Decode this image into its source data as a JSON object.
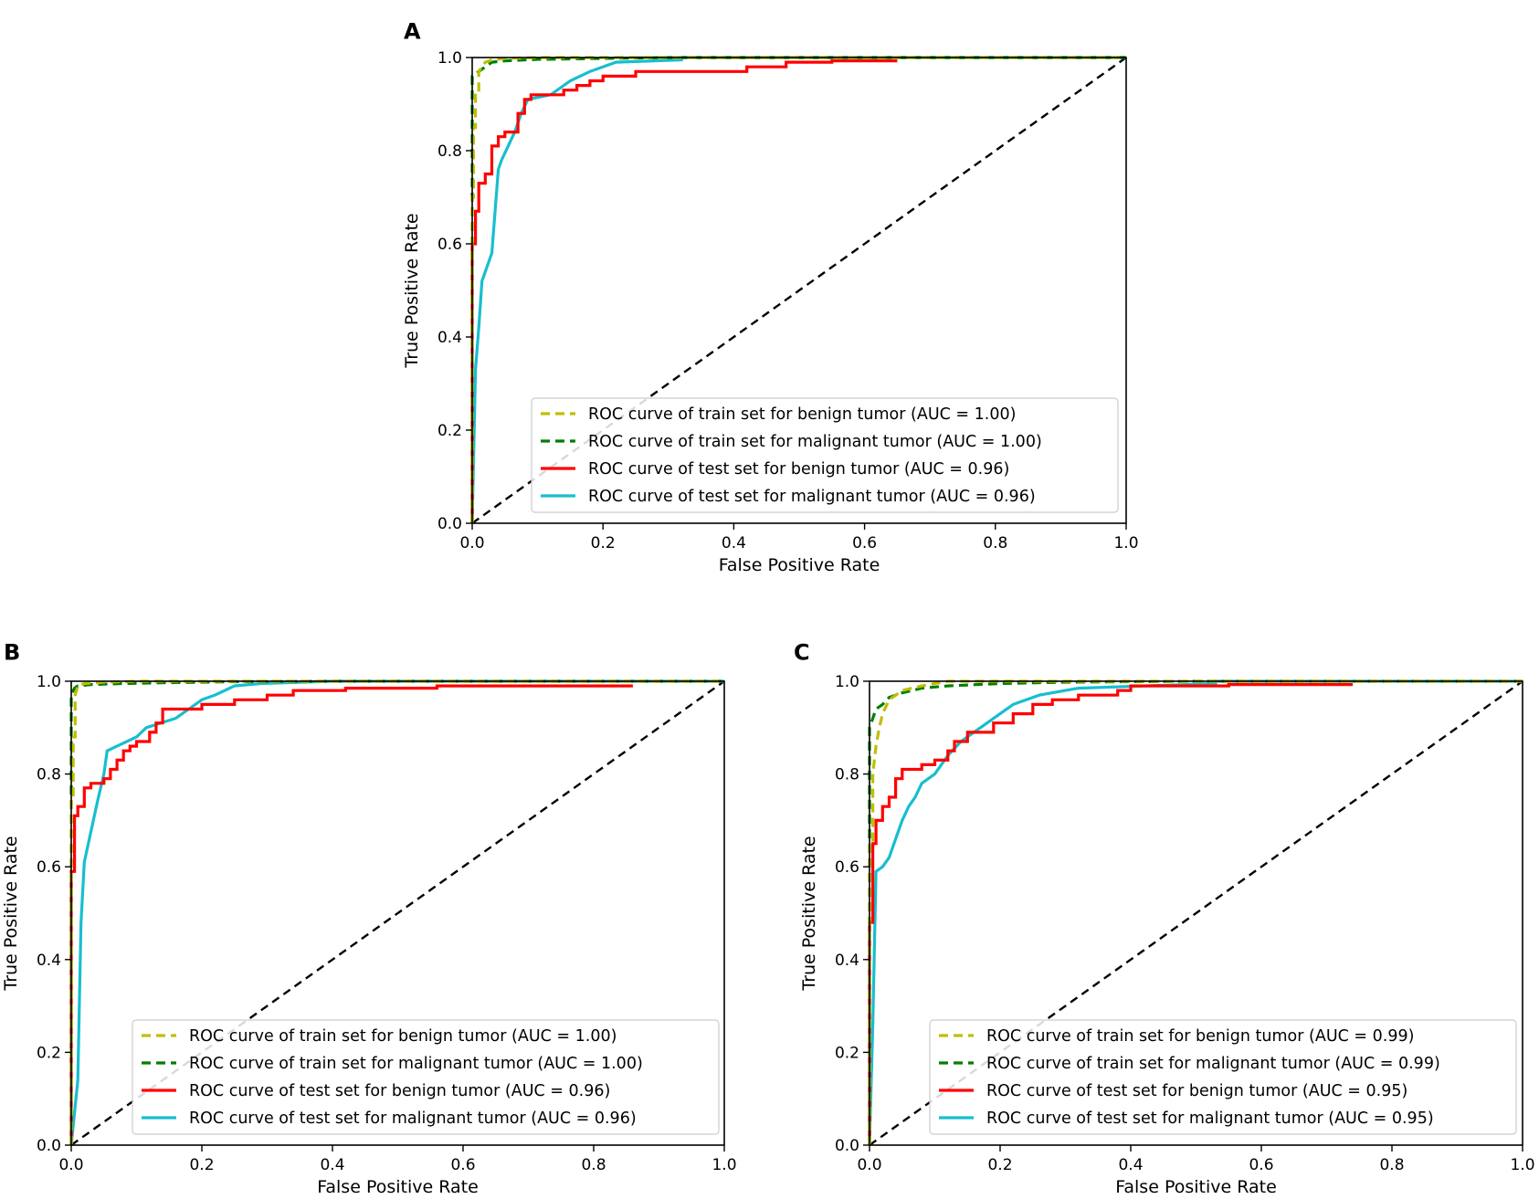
{
  "figure": {
    "panels": [
      "A",
      "B",
      "C"
    ]
  },
  "chart_data": [
    {
      "panel": "A",
      "type": "line",
      "xlabel": "False Positive Rate",
      "ylabel": "True Positive Rate",
      "xlim": [
        0.0,
        1.0
      ],
      "ylim": [
        0.0,
        1.0
      ],
      "xticks": [
        "0.0",
        "0.2",
        "0.4",
        "0.6",
        "0.8",
        "1.0"
      ],
      "yticks": [
        "0.0",
        "0.2",
        "0.4",
        "0.6",
        "0.8",
        "1.0"
      ],
      "legend_position": "lower-right",
      "reference_line": {
        "x": [
          0,
          1
        ],
        "y": [
          0,
          1
        ],
        "style": "dashed",
        "color": "#000000"
      },
      "series": [
        {
          "name": "ROC curve of train set for benign tumor (AUC = 1.00)",
          "color": "#bfbf00",
          "style": "dashed",
          "x": [
            0,
            0,
            0.002,
            0.002,
            0.005,
            0.005,
            0.01,
            0.01,
            0.02,
            0.03,
            0.05,
            0.1,
            0.2,
            1
          ],
          "y": [
            0,
            0.7,
            0.7,
            0.85,
            0.85,
            0.93,
            0.93,
            0.97,
            0.99,
            0.995,
            0.998,
            1,
            1,
            1
          ]
        },
        {
          "name": "ROC curve of train set for malignant tumor (AUC = 1.00)",
          "color": "#007f00",
          "style": "dashed",
          "x": [
            0,
            0,
            0.005,
            0.01,
            0.02,
            0.03,
            0.05,
            0.1,
            0.2,
            0.3,
            1
          ],
          "y": [
            0,
            0.96,
            0.965,
            0.97,
            0.98,
            0.99,
            0.993,
            0.996,
            0.998,
            1,
            1
          ]
        },
        {
          "name": "ROC curve of test set for benign tumor (AUC = 0.96)",
          "color": "#ff0000",
          "style": "solid",
          "x": [
            0,
            0,
            0.005,
            0.005,
            0.01,
            0.01,
            0.02,
            0.02,
            0.03,
            0.03,
            0.04,
            0.04,
            0.05,
            0.05,
            0.07,
            0.07,
            0.08,
            0.08,
            0.09,
            0.09,
            0.14,
            0.14,
            0.16,
            0.16,
            0.18,
            0.18,
            0.2,
            0.2,
            0.25,
            0.25,
            0.42,
            0.42,
            0.48,
            0.48,
            0.55,
            0.55,
            0.65
          ],
          "y": [
            0,
            0.6,
            0.6,
            0.67,
            0.67,
            0.73,
            0.73,
            0.75,
            0.75,
            0.81,
            0.81,
            0.83,
            0.83,
            0.84,
            0.84,
            0.88,
            0.88,
            0.91,
            0.91,
            0.92,
            0.92,
            0.93,
            0.93,
            0.94,
            0.94,
            0.95,
            0.95,
            0.96,
            0.96,
            0.97,
            0.97,
            0.98,
            0.98,
            0.99,
            0.99,
            0.993,
            0.993
          ]
        },
        {
          "name": "ROC curve of test set for malignant tumor (AUC = 0.96)",
          "color": "#17becf",
          "style": "solid",
          "x": [
            0,
            0.005,
            0.005,
            0.01,
            0.01,
            0.015,
            0.015,
            0.025,
            0.025,
            0.03,
            0.03,
            0.04,
            0.04,
            0.045,
            0.045,
            0.055,
            0.055,
            0.065,
            0.065,
            0.075,
            0.075,
            0.085,
            0.085,
            0.12,
            0.12,
            0.15,
            0.15,
            0.18,
            0.18,
            0.22,
            0.22,
            0.32,
            0.32,
            1
          ],
          "y": [
            0,
            0.33,
            0.33,
            0.42,
            0.42,
            0.52,
            0.52,
            0.56,
            0.56,
            0.58,
            0.58,
            0.76,
            0.76,
            0.78,
            0.78,
            0.81,
            0.81,
            0.84,
            0.84,
            0.88,
            0.88,
            0.91,
            0.91,
            0.92,
            0.92,
            0.95,
            0.95,
            0.97,
            0.97,
            0.99,
            0.99,
            0.995,
            1,
            1
          ]
        }
      ]
    },
    {
      "panel": "B",
      "type": "line",
      "xlabel": "False Positive Rate",
      "ylabel": "True Positive Rate",
      "xlim": [
        0.0,
        1.0
      ],
      "ylim": [
        0.0,
        1.0
      ],
      "xticks": [
        "0.0",
        "0.2",
        "0.4",
        "0.6",
        "0.8",
        "1.0"
      ],
      "yticks": [
        "0.0",
        "0.2",
        "0.4",
        "0.6",
        "0.8",
        "1.0"
      ],
      "legend_position": "lower-right",
      "reference_line": {
        "x": [
          0,
          1
        ],
        "y": [
          0,
          1
        ],
        "style": "dashed",
        "color": "#000000"
      },
      "series": [
        {
          "name": "ROC curve of train set for benign tumor (AUC = 1.00)",
          "color": "#bfbf00",
          "style": "dashed",
          "x": [
            0,
            0,
            0.003,
            0.003,
            0.006,
            0.006,
            0.01,
            0.02,
            0.05,
            0.1,
            1
          ],
          "y": [
            0,
            0.75,
            0.75,
            0.88,
            0.88,
            0.97,
            0.99,
            0.995,
            0.998,
            1,
            1
          ]
        },
        {
          "name": "ROC curve of train set for malignant tumor (AUC = 1.00)",
          "color": "#007f00",
          "style": "dashed",
          "x": [
            0,
            0,
            0.005,
            0.01,
            0.03,
            0.08,
            0.15,
            0.25,
            0.4,
            1
          ],
          "y": [
            0,
            0.97,
            0.985,
            0.99,
            0.993,
            0.995,
            0.997,
            0.999,
            1,
            1
          ]
        },
        {
          "name": "ROC curve of test set for benign tumor (AUC = 0.96)",
          "color": "#ff0000",
          "style": "solid",
          "x": [
            0,
            0,
            0.005,
            0.005,
            0.01,
            0.01,
            0.02,
            0.02,
            0.03,
            0.03,
            0.05,
            0.05,
            0.06,
            0.06,
            0.07,
            0.07,
            0.08,
            0.08,
            0.09,
            0.09,
            0.1,
            0.1,
            0.12,
            0.12,
            0.13,
            0.13,
            0.14,
            0.14,
            0.2,
            0.2,
            0.25,
            0.25,
            0.3,
            0.3,
            0.34,
            0.34,
            0.42,
            0.42,
            0.56,
            0.56,
            0.86
          ],
          "y": [
            0,
            0.59,
            0.59,
            0.71,
            0.71,
            0.73,
            0.73,
            0.77,
            0.77,
            0.78,
            0.78,
            0.79,
            0.79,
            0.81,
            0.81,
            0.83,
            0.83,
            0.85,
            0.85,
            0.86,
            0.86,
            0.87,
            0.87,
            0.89,
            0.89,
            0.91,
            0.91,
            0.94,
            0.94,
            0.95,
            0.95,
            0.96,
            0.96,
            0.97,
            0.97,
            0.98,
            0.98,
            0.985,
            0.985,
            0.99,
            0.99
          ]
        },
        {
          "name": "ROC curve of test set for malignant tumor (AUC = 0.96)",
          "color": "#17becf",
          "style": "solid",
          "x": [
            0,
            0.01,
            0.01,
            0.015,
            0.015,
            0.02,
            0.02,
            0.04,
            0.04,
            0.045,
            0.045,
            0.05,
            0.05,
            0.055,
            0.055,
            0.1,
            0.1,
            0.115,
            0.115,
            0.16,
            0.16,
            0.18,
            0.18,
            0.2,
            0.2,
            0.22,
            0.22,
            0.25,
            0.25,
            0.29,
            0.29,
            0.4,
            0.4,
            1
          ],
          "y": [
            0,
            0.14,
            0.14,
            0.48,
            0.48,
            0.61,
            0.61,
            0.74,
            0.74,
            0.77,
            0.77,
            0.8,
            0.8,
            0.85,
            0.85,
            0.88,
            0.88,
            0.9,
            0.9,
            0.92,
            0.92,
            0.94,
            0.94,
            0.96,
            0.96,
            0.97,
            0.97,
            0.99,
            0.99,
            0.995,
            0.995,
            1,
            1,
            1
          ]
        }
      ]
    },
    {
      "panel": "C",
      "type": "line",
      "xlabel": "False Positive Rate",
      "ylabel": "True Positive Rate",
      "xlim": [
        0.0,
        1.0
      ],
      "ylim": [
        0.0,
        1.0
      ],
      "xticks": [
        "0.0",
        "0.2",
        "0.4",
        "0.6",
        "0.8",
        "1.0"
      ],
      "yticks": [
        "0.0",
        "0.2",
        "0.4",
        "0.6",
        "0.8",
        "1.0"
      ],
      "legend_position": "lower-right",
      "reference_line": {
        "x": [
          0,
          1
        ],
        "y": [
          0,
          1
        ],
        "style": "dashed",
        "color": "#000000"
      },
      "series": [
        {
          "name": "ROC curve of train set for benign tumor (AUC = 0.99)",
          "color": "#bfbf00",
          "style": "dashed",
          "x": [
            0,
            0,
            0.005,
            0.005,
            0.01,
            0.015,
            0.02,
            0.03,
            0.05,
            0.08,
            0.12,
            0.2,
            0.3,
            1
          ],
          "y": [
            0,
            0.65,
            0.65,
            0.8,
            0.86,
            0.9,
            0.93,
            0.96,
            0.98,
            0.99,
            1,
            1,
            1,
            1
          ]
        },
        {
          "name": "ROC curve of train set for malignant tumor (AUC = 0.99)",
          "color": "#007f00",
          "style": "dashed",
          "x": [
            0,
            0,
            0.005,
            0.01,
            0.02,
            0.03,
            0.05,
            0.08,
            0.12,
            0.2,
            0.3,
            0.5,
            1
          ],
          "y": [
            0,
            0.9,
            0.92,
            0.94,
            0.95,
            0.965,
            0.975,
            0.985,
            0.99,
            0.995,
            0.998,
            1,
            1
          ]
        },
        {
          "name": "ROC curve of test set for benign tumor (AUC = 0.95)",
          "color": "#ff0000",
          "style": "solid",
          "x": [
            0,
            0,
            0.005,
            0.005,
            0.01,
            0.01,
            0.02,
            0.02,
            0.03,
            0.03,
            0.04,
            0.04,
            0.05,
            0.05,
            0.08,
            0.08,
            0.1,
            0.1,
            0.12,
            0.12,
            0.13,
            0.13,
            0.15,
            0.15,
            0.19,
            0.19,
            0.22,
            0.22,
            0.25,
            0.25,
            0.28,
            0.28,
            0.32,
            0.32,
            0.38,
            0.38,
            0.4,
            0.4,
            0.55,
            0.55,
            0.74
          ],
          "y": [
            0,
            0.48,
            0.48,
            0.65,
            0.65,
            0.7,
            0.7,
            0.73,
            0.73,
            0.75,
            0.75,
            0.79,
            0.79,
            0.81,
            0.81,
            0.82,
            0.82,
            0.83,
            0.83,
            0.85,
            0.85,
            0.87,
            0.87,
            0.89,
            0.89,
            0.91,
            0.91,
            0.93,
            0.93,
            0.95,
            0.95,
            0.96,
            0.96,
            0.97,
            0.97,
            0.98,
            0.98,
            0.99,
            0.99,
            0.993,
            0.993
          ]
        },
        {
          "name": "ROC curve of test set for malignant tumor (AUC = 0.95)",
          "color": "#17becf",
          "style": "solid",
          "x": [
            0,
            0.005,
            0.005,
            0.01,
            0.01,
            0.02,
            0.02,
            0.03,
            0.03,
            0.04,
            0.04,
            0.05,
            0.05,
            0.06,
            0.06,
            0.07,
            0.07,
            0.08,
            0.08,
            0.1,
            0.1,
            0.12,
            0.12,
            0.14,
            0.14,
            0.17,
            0.17,
            0.2,
            0.2,
            0.22,
            0.22,
            0.26,
            0.26,
            0.32,
            0.32,
            0.53,
            0.53,
            1
          ],
          "y": [
            0,
            0.26,
            0.26,
            0.59,
            0.59,
            0.6,
            0.6,
            0.62,
            0.62,
            0.66,
            0.66,
            0.7,
            0.7,
            0.73,
            0.73,
            0.75,
            0.75,
            0.78,
            0.78,
            0.8,
            0.8,
            0.84,
            0.84,
            0.87,
            0.87,
            0.9,
            0.9,
            0.93,
            0.93,
            0.95,
            0.95,
            0.97,
            0.97,
            0.985,
            0.985,
            0.995,
            1,
            1
          ]
        }
      ]
    }
  ]
}
